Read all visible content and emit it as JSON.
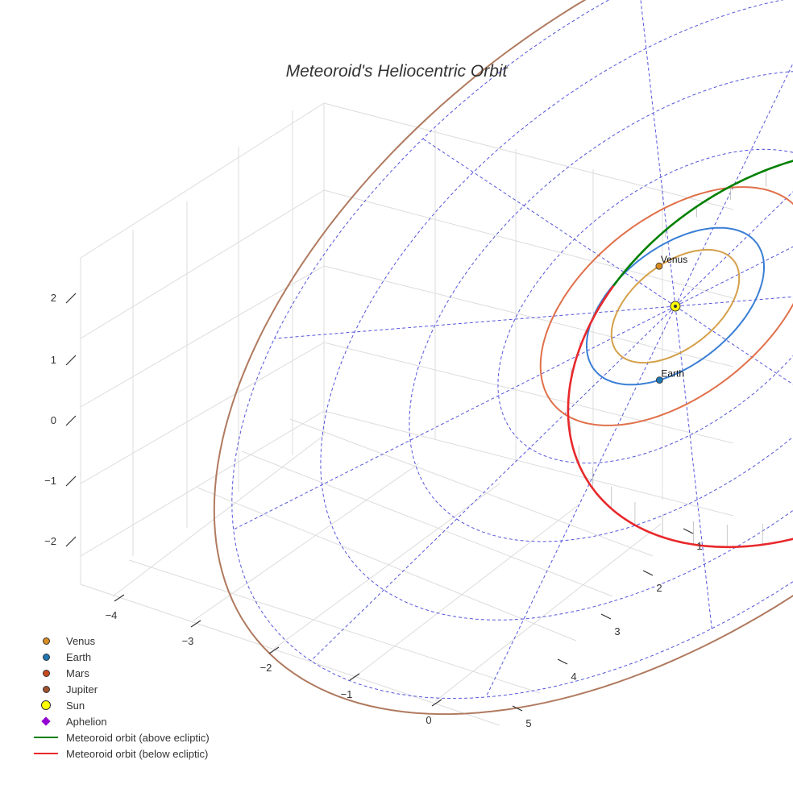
{
  "chart_data": {
    "type": "line",
    "title": "Meteoroid's Heliocentric Orbit",
    "projection": "3d",
    "axes": {
      "x": {
        "ticks": [
          -4,
          -3,
          -2,
          -1,
          0
        ],
        "tick_labels": [
          "−4",
          "−3",
          "−2",
          "−1",
          "0"
        ]
      },
      "y": {
        "ticks": [
          1,
          2,
          3,
          4,
          5
        ],
        "tick_labels": [
          "1",
          "2",
          "3",
          "4",
          "5"
        ]
      },
      "z": {
        "ticks": [
          -2,
          -1,
          0,
          1,
          2
        ],
        "tick_labels": [
          "−2",
          "−1",
          "0",
          "1",
          "2"
        ]
      }
    },
    "grid": true,
    "legend_position": "bottom-left",
    "colors": {
      "venus": "#d98c1f",
      "earth": "#1f77b4",
      "mars": "#c94a1f",
      "jupiter": "#a0522d",
      "sun": "#ffff00",
      "aphelion": "#9400d3",
      "above": "#008000",
      "below": "#e8282b",
      "venus_orbit": "#d4a04a",
      "earth_orbit": "#3a7fd5",
      "mars_orbit": "#e0704a",
      "jupiter_orbit": "#b07a5f",
      "ecliptic_grid": "#5555dd"
    },
    "planets": [
      {
        "name": "Venus",
        "orbit_radius": 0.72,
        "angle_deg": 230
      },
      {
        "name": "Earth",
        "orbit_radius": 1.0,
        "angle_deg": 75
      },
      {
        "name": "Mars",
        "orbit_radius": 1.52,
        "angle_deg": 310
      },
      {
        "name": "Jupiter",
        "orbit_radius": 5.2,
        "angle_deg": null
      }
    ],
    "sun": {
      "x": 0,
      "y": 0,
      "z": 0
    },
    "meteoroid": {
      "semi_major_axis": 3.0,
      "eccentricity": 0.67,
      "aphelion_distance": 5.0,
      "perihelion_distance": 1.0
    },
    "series": [
      {
        "name": "Venus"
      },
      {
        "name": "Earth"
      },
      {
        "name": "Mars"
      },
      {
        "name": "Jupiter"
      },
      {
        "name": "Sun"
      },
      {
        "name": "Aphelion"
      },
      {
        "name": "Meteoroid orbit (above ecliptic)"
      },
      {
        "name": "Meteoroid orbit (below ecliptic)"
      }
    ]
  }
}
